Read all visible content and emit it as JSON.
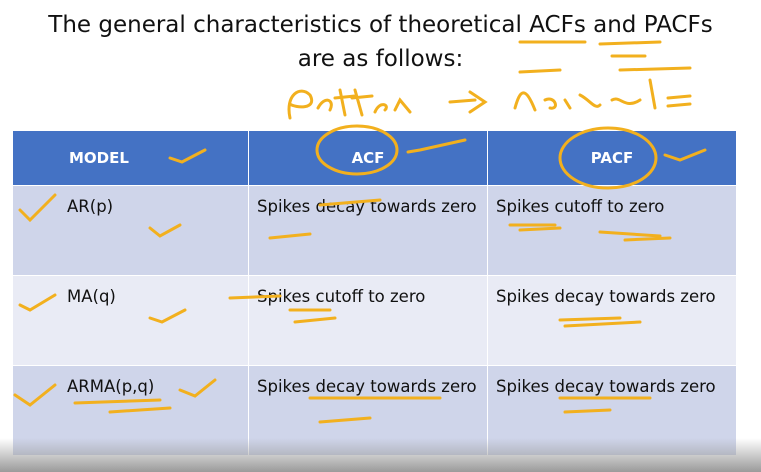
{
  "header": {
    "title_lines": [
      "The general characteristics of theoretical ACFs and PACFs",
      "are as follows:"
    ]
  },
  "table": {
    "columns": [
      "MODEL",
      "ACF",
      "PACF"
    ],
    "rows": [
      [
        "AR(p)",
        "Spikes decay towards zero",
        "Spikes cutoff to zero"
      ],
      [
        "MA(q)",
        "Spikes cutoff to zero",
        "Spikes decay towards zero"
      ],
      [
        "ARMA(p,q)",
        "Spikes decay towards zero",
        "Spikes decay towards zero"
      ]
    ]
  }
}
